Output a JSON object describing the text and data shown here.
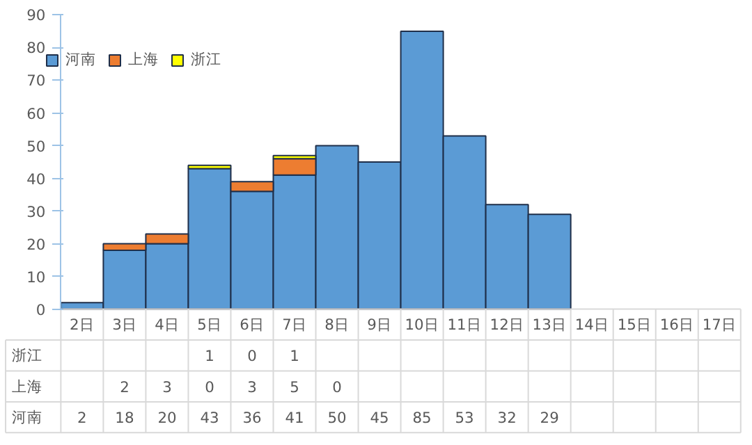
{
  "chart_data": {
    "type": "bar",
    "stacked": true,
    "categories": [
      "2日",
      "3日",
      "4日",
      "5日",
      "6日",
      "7日",
      "8日",
      "9日",
      "10日",
      "11日",
      "12日",
      "13日",
      "14日",
      "15日",
      "16日",
      "17日"
    ],
    "series": [
      {
        "name": "河南",
        "color": "#5b9bd5",
        "values": [
          2,
          18,
          20,
          43,
          36,
          41,
          50,
          45,
          85,
          53,
          32,
          29,
          null,
          null,
          null,
          null
        ]
      },
      {
        "name": "上海",
        "color": "#ed7d31",
        "values": [
          null,
          2,
          3,
          0,
          3,
          5,
          0,
          null,
          null,
          null,
          null,
          null,
          null,
          null,
          null,
          null
        ]
      },
      {
        "name": "浙江",
        "color": "#ffff00",
        "values": [
          null,
          null,
          null,
          1,
          0,
          1,
          null,
          null,
          null,
          null,
          null,
          null,
          null,
          null,
          null,
          null
        ]
      }
    ],
    "ylim": [
      0,
      90
    ],
    "yticks": [
      0,
      10,
      20,
      30,
      40,
      50,
      60,
      70,
      80,
      90
    ],
    "grid": false,
    "legend": "top left",
    "data_labels": true
  }
}
